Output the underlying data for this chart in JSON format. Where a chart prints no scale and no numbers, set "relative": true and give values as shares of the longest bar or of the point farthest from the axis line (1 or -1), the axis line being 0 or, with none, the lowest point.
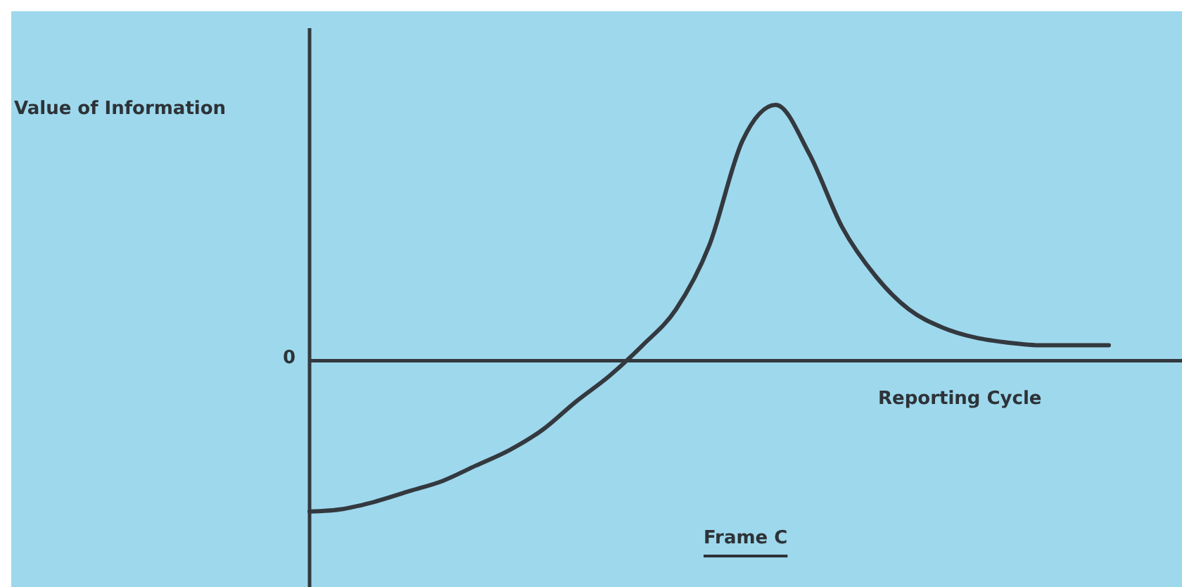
{
  "chart_data": {
    "type": "line",
    "title": "Frame C",
    "xlabel": "Reporting Cycle",
    "ylabel": "Value of Information",
    "relative": true,
    "annotations": [
      "0"
    ],
    "categories": [
      null,
      null,
      null,
      null,
      null,
      null,
      null,
      null,
      null,
      null,
      null,
      null,
      null,
      null,
      null,
      null,
      null,
      null,
      null,
      null,
      null,
      null,
      null,
      null,
      null
    ],
    "series": [
      {
        "color": "#33393f",
        "values": [
          -0.59,
          -0.58,
          -0.55,
          -0.51,
          -0.47,
          -0.41,
          -0.35,
          -0.27,
          -0.16,
          -0.06,
          0.06,
          0.2,
          0.45,
          0.86,
          1,
          0.81,
          0.52,
          0.33,
          0.2,
          0.13,
          0.09,
          0.07,
          0.06,
          0.06,
          0.06
        ]
      }
    ],
    "marker": "none",
    "line_style": "solid",
    "grid": false,
    "legend": false
  }
}
